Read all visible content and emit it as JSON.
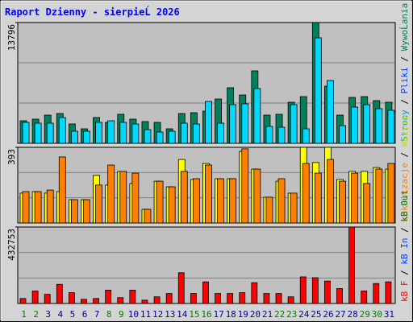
{
  "chart_data": [
    {
      "type": "bar",
      "title": "Raport Dzienny -  sierpieĹ  2026",
      "ylim": [
        0,
        13796
      ],
      "yticks": [
        13796
      ],
      "legend": [
        {
          "name": "Strony",
          "color": "#00a0c0"
        },
        {
          "name": "Pliki",
          "color": "#0040ff"
        },
        {
          "name": "WywoĹania",
          "color": "#00805c"
        }
      ],
      "series": [
        {
          "color": "#00805c",
          "values": [
            2575,
            2759,
            3219,
            3403,
            2207,
            1655,
            2943,
            2391,
            3311,
            2759,
            2483,
            2391,
            1655,
            3403,
            3495,
            3679,
            5058,
            6346,
            5518,
            8277,
            3219,
            3311,
            4691,
            5334,
            13796,
            6530,
            3219,
            5242,
            5334,
            4874,
            4691
          ]
        },
        {
          "color": "#00d8ff",
          "values": [
            2391,
            2299,
            2299,
            2943,
            1380,
            1380,
            2391,
            2575,
            2391,
            2207,
            1563,
            1288,
            1380,
            2299,
            2207,
            4782,
            2299,
            4415,
            4507,
            6254,
            1931,
            1839,
            4415,
            1655,
            12048,
            7174,
            2023,
            4139,
            4415,
            3955,
            3771
          ]
        }
      ]
    },
    {
      "type": "bar",
      "ylim": [
        0,
        393
      ],
      "yticks": [
        393
      ],
      "legend": [
        {
          "name": "Lokalizacje",
          "color": "#ff8000"
        },
        {
          "name": "Wizyty",
          "color": "#d8d800"
        }
      ],
      "series": [
        {
          "color": "#ffff00",
          "values": [
            155,
            163,
            155,
            163,
            121,
            121,
            247,
            197,
            268,
            205,
            71,
            217,
            188,
            330,
            226,
            309,
            230,
            230,
            372,
            280,
            134,
            217,
            155,
            393,
            314,
            393,
            226,
            268,
            268,
            288,
            280
          ]
        },
        {
          "color": "#ff8000",
          "values": [
            163,
            163,
            171,
            343,
            121,
            121,
            197,
            301,
            268,
            259,
            71,
            217,
            188,
            268,
            230,
            301,
            230,
            230,
            385,
            280,
            134,
            230,
            155,
            309,
            259,
            330,
            217,
            259,
            205,
            280,
            309
          ]
        }
      ]
    },
    {
      "type": "bar",
      "ylim": [
        0,
        432753
      ],
      "yticks": [
        432753
      ],
      "legend": [
        {
          "name": "kB F",
          "color": "#ff0000"
        },
        {
          "name": "kB In",
          "color": "#0040ff"
        },
        {
          "name": "kB Out",
          "color": "#008000"
        }
      ],
      "categories": [
        "1",
        "2",
        "3",
        "4",
        "5",
        "6",
        "7",
        "8",
        "9",
        "10",
        "11",
        "12",
        "13",
        "14",
        "15",
        "16",
        "17",
        "18",
        "19",
        "20",
        "21",
        "22",
        "23",
        "24",
        "25",
        "26",
        "27",
        "28",
        "29",
        "30",
        "31"
      ],
      "category_colors": [
        "#008000",
        "#008000",
        "#0000a0",
        "#0000a0",
        "#0000a0",
        "#0000a0",
        "#0000a0",
        "#008000",
        "#008000",
        "#0000a0",
        "#0000a0",
        "#0000a0",
        "#0000a0",
        "#0000a0",
        "#008000",
        "#008000",
        "#0000a0",
        "#0000a0",
        "#0000a0",
        "#0000a0",
        "#0000a0",
        "#008000",
        "#008000",
        "#0000a0",
        "#0000a0",
        "#0000a0",
        "#0000a0",
        "#0000a0",
        "#008000",
        "#008000",
        "#0000a0"
      ],
      "series": [
        {
          "color": "#ff0000",
          "values": [
            28223,
            70557,
            51742,
            108187,
            61149,
            23519,
            28223,
            75261,
            32927,
            75261,
            18815,
            37630,
            56446,
            174041,
            56446,
            122299,
            56446,
            56446,
            61149,
            117595,
            56446,
            56446,
            37630,
            150522,
            145818,
            127003,
            84668,
            432753,
            70557,
            112891,
            122299
          ]
        }
      ]
    }
  ]
}
